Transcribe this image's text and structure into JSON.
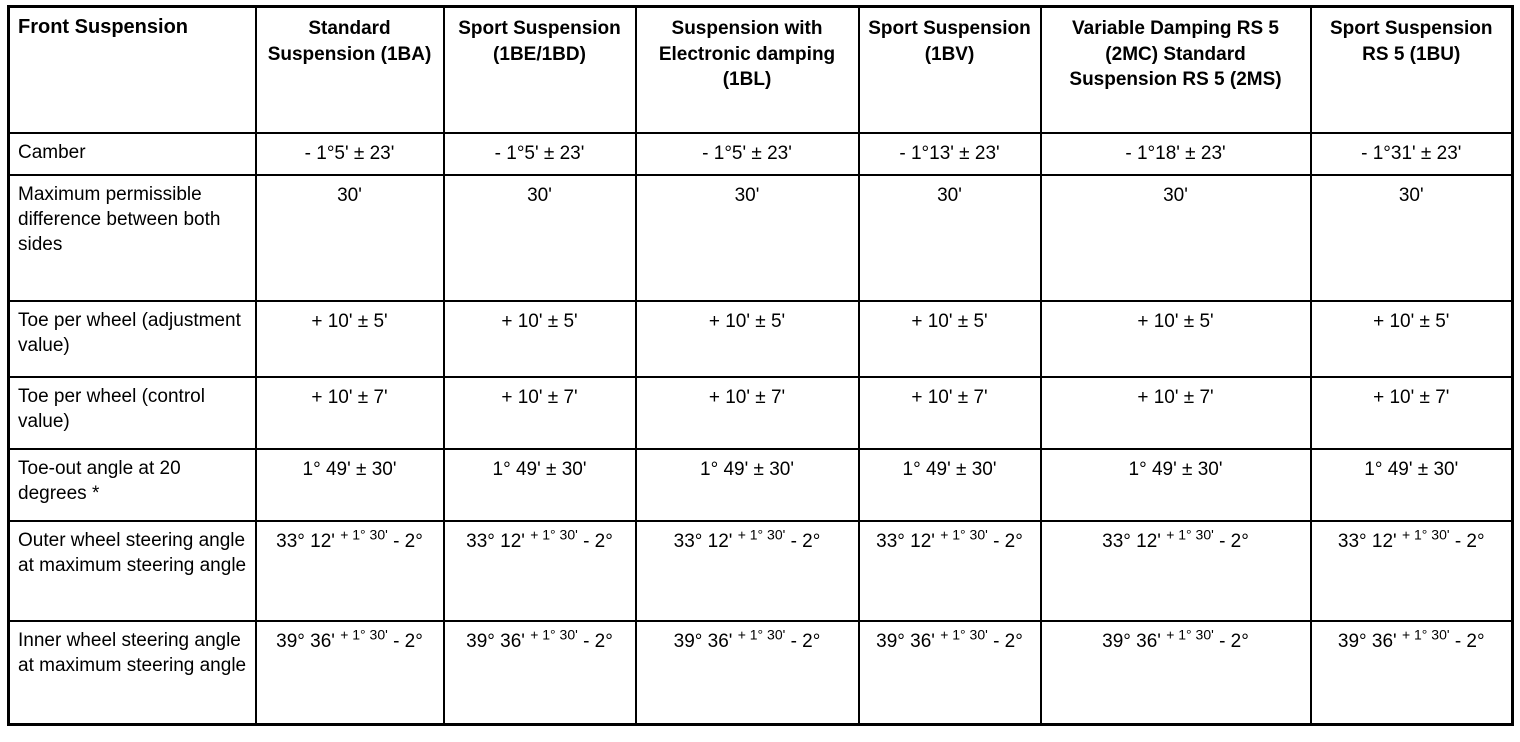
{
  "table": {
    "corner_label": "Front Suspension",
    "columns": [
      "Standard Suspension (1BA)",
      "Sport Suspension (1BE/1BD)",
      "Suspension with Electronic damping (1BL)",
      "Sport Suspension (1BV)",
      "Variable Damping RS 5 (2MC) Standard Suspension RS 5 (2MS)",
      "Sport Suspension RS 5 (1BU)"
    ],
    "rows": [
      {
        "label": "Camber",
        "values": [
          "- 1°5' ± 23'",
          "- 1°5' ± 23'",
          "- 1°5' ± 23'",
          "- 1°13' ± 23'",
          "- 1°18' ± 23'",
          "- 1°31' ± 23'"
        ]
      },
      {
        "label": "Maximum permissible difference between both sides",
        "values": [
          "30'",
          "30'",
          "30'",
          "30'",
          "30'",
          "30'"
        ]
      },
      {
        "label": "Toe per wheel (adjustment value)",
        "values": [
          "+ 10' ± 5'",
          "+ 10' ± 5'",
          "+ 10' ± 5'",
          "+ 10' ± 5'",
          "+ 10' ± 5'",
          "+ 10' ± 5'"
        ]
      },
      {
        "label": "Toe per wheel (control value)",
        "values": [
          "+ 10' ± 7'",
          "+ 10' ± 7'",
          "+ 10' ± 7'",
          "+ 10' ± 7'",
          "+ 10' ± 7'",
          "+ 10' ± 7'"
        ]
      },
      {
        "label": "Toe-out angle at 20 degrees *",
        "values": [
          "1° 49' ± 30'",
          "1° 49' ± 30'",
          "1° 49' ± 30'",
          "1° 49' ± 30'",
          "1° 49' ± 30'",
          "1° 49' ± 30'"
        ]
      },
      {
        "label": "Outer wheel steering angle at maximum steering angle",
        "values": [
          {
            "main": "33° 12'",
            "sup": "+ 1° 30'",
            "tail": "- 2°"
          },
          {
            "main": "33° 12'",
            "sup": "+ 1° 30'",
            "tail": "- 2°"
          },
          {
            "main": "33° 12'",
            "sup": "+ 1° 30'",
            "tail": "- 2°"
          },
          {
            "main": "33° 12'",
            "sup": "+ 1° 30'",
            "tail": "- 2°"
          },
          {
            "main": "33° 12'",
            "sup": "+ 1° 30'",
            "tail": "- 2°"
          },
          {
            "main": "33° 12'",
            "sup": "+ 1° 30'",
            "tail": "- 2°"
          }
        ]
      },
      {
        "label": "Inner wheel steering angle at maximum steering angle",
        "values": [
          {
            "main": "39° 36'",
            "sup": "+ 1° 30'",
            "tail": "- 2°"
          },
          {
            "main": "39° 36'",
            "sup": "+ 1° 30'",
            "tail": "- 2°"
          },
          {
            "main": "39° 36'",
            "sup": "+ 1° 30'",
            "tail": "- 2°"
          },
          {
            "main": "39° 36'",
            "sup": "+ 1° 30'",
            "tail": "- 2°"
          },
          {
            "main": "39° 36'",
            "sup": "+ 1° 30'",
            "tail": "- 2°"
          },
          {
            "main": "39° 36'",
            "sup": "+ 1° 30'",
            "tail": "- 2°"
          }
        ]
      }
    ]
  }
}
